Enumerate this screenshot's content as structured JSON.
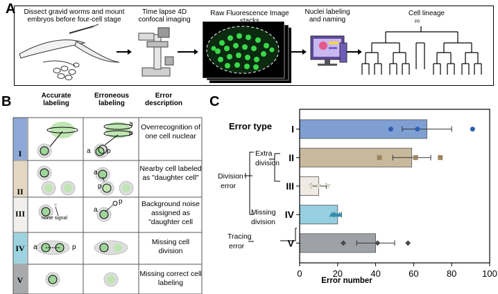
{
  "panel_a": {
    "letter": "A",
    "steps": [
      "Dissect gravid worms and mount embryos before four-cell stage",
      "Time lapse 4D confocal imaging",
      "Raw Fluorescence Image stacks",
      "Nuclei labeling and naming",
      "Cell lineage"
    ],
    "lineage_root": "P0"
  },
  "panel_b": {
    "letter": "B",
    "headers": [
      "Accurate labeling",
      "Erroneous labeling",
      "Error description"
    ],
    "rows": [
      {
        "num": "I",
        "color": "#8da8d6",
        "desc": "Overrecognition of one cell nuclear"
      },
      {
        "num": "II",
        "color": "#e5d8c3",
        "desc": "Nearby cell labeled as \"daughter cell\""
      },
      {
        "num": "III",
        "color": "#f1efec",
        "desc": "Background noise assigned as \"daughter cell"
      },
      {
        "num": "IV",
        "color": "#9dd3e0",
        "desc": "Missing cell division"
      },
      {
        "num": "V",
        "color": "#a7a9ad",
        "desc": "Missing correct cell labeling"
      }
    ],
    "noise_label": "noise signal",
    "ap_a": "a",
    "ap_p": "p"
  },
  "panel_c": {
    "letter": "C",
    "error_type_title": "Error type",
    "group_extra": "Extra division",
    "group_division_error": "Division error",
    "group_missing": "Missing division",
    "group_tracing": "Tracing error"
  },
  "chart_data": {
    "type": "bar",
    "orientation": "horizontal",
    "categories": [
      "I",
      "II",
      "III",
      "IV",
      "V"
    ],
    "values": [
      67,
      59,
      10,
      20,
      40
    ],
    "errors": [
      13,
      10,
      4,
      2,
      10
    ],
    "points": [
      [
        48,
        62,
        91
      ],
      [
        42,
        61,
        74
      ],
      [
        6,
        10,
        15
      ],
      [
        17,
        19,
        21
      ],
      [
        23,
        41,
        57
      ]
    ],
    "colors": [
      "#7f9fd3",
      "#c9b99c",
      "#efeae4",
      "#96cfdf",
      "#9ea1a6"
    ],
    "point_colors": [
      "#2f5fb0",
      "#9c8460",
      "#ddd3c6",
      "#2f8fb5",
      "#4a4a4a"
    ],
    "point_shapes": [
      "circle",
      "square",
      "triangle-down",
      "triangle-up",
      "diamond"
    ],
    "xlabel": "Error number",
    "ylabel": "",
    "xlim": [
      0,
      100
    ],
    "xticks": [
      0,
      20,
      40,
      60,
      80,
      100
    ]
  }
}
